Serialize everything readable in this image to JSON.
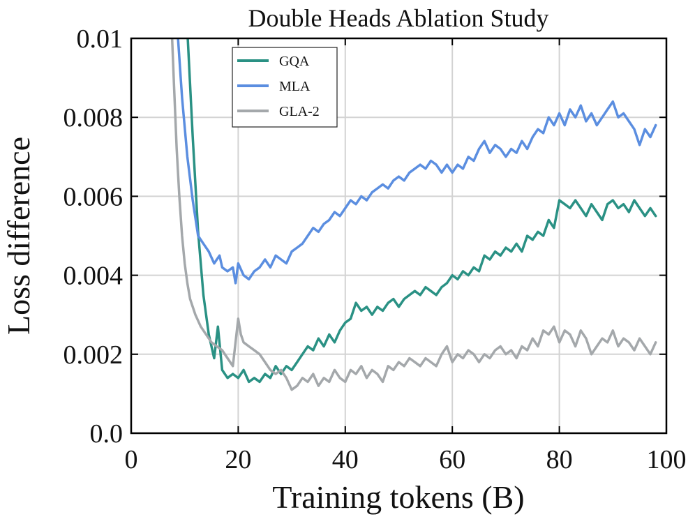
{
  "chart_data": {
    "type": "line",
    "title": "Double Heads Ablation Study",
    "xlabel": "Training tokens (B)",
    "ylabel": "Loss difference",
    "xlim": [
      0,
      100
    ],
    "ylim": [
      0,
      0.01
    ],
    "xticks": [
      0,
      20,
      40,
      60,
      80,
      100
    ],
    "xtick_labels": [
      "0",
      "20",
      "40",
      "60",
      "80",
      "100"
    ],
    "yticks": [
      0,
      0.002,
      0.004,
      0.006,
      0.008,
      0.01
    ],
    "ytick_labels": [
      "0.0",
      "0.002",
      "0.004",
      "0.006",
      "0.008",
      "0.01"
    ],
    "grid": true,
    "legend_position": "top-left",
    "series": [
      {
        "name": "GQA",
        "color": "#2a9184",
        "x": [
          10.5,
          11.5,
          12.5,
          13.5,
          14.5,
          15.5,
          16.2,
          17,
          18,
          19,
          20,
          21,
          22,
          23,
          24,
          25,
          26,
          27,
          28,
          29,
          30,
          31,
          32,
          33,
          34,
          35,
          36,
          37,
          38,
          39,
          40,
          41,
          42,
          43,
          44,
          45,
          46,
          47,
          48,
          49,
          50,
          51,
          52,
          53,
          54,
          55,
          56,
          57,
          58,
          59,
          60,
          61,
          62,
          63,
          64,
          65,
          66,
          67,
          68,
          69,
          70,
          71,
          72,
          73,
          74,
          75,
          76,
          77,
          78,
          79,
          80,
          81,
          82,
          83,
          84,
          85,
          86,
          87,
          88,
          89,
          90,
          91,
          92,
          93,
          94,
          95,
          96,
          97,
          98
        ],
        "y": [
          0.0102,
          0.0075,
          0.0051,
          0.0035,
          0.0025,
          0.0019,
          0.0027,
          0.0016,
          0.0014,
          0.0015,
          0.0014,
          0.0016,
          0.0013,
          0.0014,
          0.0013,
          0.0015,
          0.0014,
          0.0017,
          0.0015,
          0.0017,
          0.0016,
          0.0018,
          0.002,
          0.0022,
          0.0021,
          0.0024,
          0.0022,
          0.0025,
          0.0023,
          0.0026,
          0.0028,
          0.0029,
          0.0033,
          0.0031,
          0.0032,
          0.003,
          0.0032,
          0.0031,
          0.0033,
          0.0034,
          0.0032,
          0.0034,
          0.0035,
          0.0036,
          0.0035,
          0.0037,
          0.0036,
          0.0035,
          0.0037,
          0.0038,
          0.004,
          0.0039,
          0.0041,
          0.004,
          0.0042,
          0.0041,
          0.0045,
          0.0044,
          0.0046,
          0.0045,
          0.0047,
          0.0046,
          0.0048,
          0.0046,
          0.005,
          0.0049,
          0.0051,
          0.005,
          0.0054,
          0.0052,
          0.0059,
          0.0058,
          0.0057,
          0.0059,
          0.0057,
          0.0055,
          0.0058,
          0.0056,
          0.0054,
          0.0058,
          0.0059,
          0.0057,
          0.0058,
          0.0056,
          0.0059,
          0.0057,
          0.0055,
          0.0057,
          0.0055
        ]
      },
      {
        "name": "MLA",
        "color": "#5b8ee0",
        "x": [
          8.5,
          9.5,
          10.5,
          11.5,
          12.5,
          13.5,
          14.5,
          15.5,
          16.5,
          17,
          18,
          19,
          19.5,
          20,
          21,
          22,
          23,
          24,
          25,
          26,
          27,
          28,
          29,
          30,
          31,
          32,
          33,
          34,
          35,
          36,
          37,
          38,
          39,
          40,
          41,
          42,
          43,
          44,
          45,
          46,
          47,
          48,
          49,
          50,
          51,
          52,
          53,
          54,
          55,
          56,
          57,
          58,
          59,
          60,
          61,
          62,
          63,
          64,
          65,
          66,
          67,
          68,
          69,
          70,
          71,
          72,
          73,
          74,
          75,
          76,
          77,
          78,
          79,
          80,
          81,
          82,
          83,
          84,
          85,
          86,
          87,
          88,
          89,
          90,
          91,
          92,
          93,
          94,
          95,
          96,
          97,
          98
        ],
        "y": [
          0.0105,
          0.0085,
          0.007,
          0.0059,
          0.005,
          0.0048,
          0.0046,
          0.0043,
          0.0045,
          0.0042,
          0.0041,
          0.0042,
          0.0038,
          0.0043,
          0.004,
          0.0039,
          0.0041,
          0.0042,
          0.0044,
          0.0042,
          0.0045,
          0.0044,
          0.0043,
          0.0046,
          0.0047,
          0.0048,
          0.005,
          0.0052,
          0.0051,
          0.0053,
          0.0054,
          0.0056,
          0.0055,
          0.0057,
          0.0059,
          0.0058,
          0.006,
          0.0059,
          0.0061,
          0.0062,
          0.0063,
          0.0062,
          0.0064,
          0.0065,
          0.0064,
          0.0066,
          0.0067,
          0.0068,
          0.0067,
          0.0069,
          0.0068,
          0.0066,
          0.0068,
          0.0066,
          0.0068,
          0.0067,
          0.007,
          0.0069,
          0.0072,
          0.0074,
          0.0071,
          0.0073,
          0.0072,
          0.007,
          0.0072,
          0.0071,
          0.0074,
          0.0072,
          0.0075,
          0.0077,
          0.0076,
          0.008,
          0.0078,
          0.0081,
          0.0078,
          0.0082,
          0.008,
          0.0083,
          0.0079,
          0.0081,
          0.0078,
          0.008,
          0.0082,
          0.0084,
          0.008,
          0.0081,
          0.0079,
          0.0077,
          0.0073,
          0.0077,
          0.0075,
          0.0078
        ]
      },
      {
        "name": "GLA-2",
        "color": "#a4a8ab",
        "x": [
          7.5,
          8,
          8.5,
          9,
          9.5,
          10,
          10.5,
          11,
          12,
          13,
          14,
          15,
          16,
          17,
          18,
          19,
          20,
          20.5,
          21,
          22,
          23,
          24,
          25,
          26,
          27,
          28,
          29,
          30,
          31,
          32,
          33,
          34,
          35,
          36,
          37,
          38,
          39,
          40,
          41,
          42,
          43,
          44,
          45,
          46,
          47,
          48,
          49,
          50,
          51,
          52,
          53,
          54,
          55,
          56,
          57,
          58,
          59,
          60,
          61,
          62,
          63,
          64,
          65,
          66,
          67,
          68,
          69,
          70,
          71,
          72,
          73,
          74,
          75,
          76,
          77,
          78,
          79,
          80,
          81,
          82,
          83,
          84,
          85,
          86,
          87,
          88,
          89,
          90,
          91,
          92,
          93,
          94,
          95,
          96,
          97,
          98
        ],
        "y": [
          0.0105,
          0.0088,
          0.0072,
          0.006,
          0.005,
          0.0043,
          0.0038,
          0.0034,
          0.003,
          0.0027,
          0.0025,
          0.0023,
          0.0022,
          0.0021,
          0.0019,
          0.0017,
          0.0029,
          0.0025,
          0.0023,
          0.0022,
          0.0021,
          0.002,
          0.0018,
          0.0016,
          0.0015,
          0.0016,
          0.0014,
          0.0011,
          0.0012,
          0.0014,
          0.0013,
          0.0015,
          0.0012,
          0.0014,
          0.0013,
          0.0016,
          0.0014,
          0.0013,
          0.0016,
          0.0015,
          0.0017,
          0.0014,
          0.0016,
          0.0015,
          0.0013,
          0.0017,
          0.0016,
          0.0018,
          0.0017,
          0.0019,
          0.0018,
          0.0017,
          0.0019,
          0.0018,
          0.0017,
          0.002,
          0.0022,
          0.0018,
          0.002,
          0.0019,
          0.0021,
          0.002,
          0.0018,
          0.002,
          0.0019,
          0.0021,
          0.0022,
          0.002,
          0.0021,
          0.0019,
          0.0022,
          0.0021,
          0.0024,
          0.0022,
          0.0026,
          0.0025,
          0.0027,
          0.0023,
          0.0026,
          0.0025,
          0.0022,
          0.0026,
          0.0024,
          0.002,
          0.0022,
          0.0024,
          0.0023,
          0.0026,
          0.0022,
          0.0024,
          0.0023,
          0.0021,
          0.0024,
          0.0022,
          0.002,
          0.0023
        ]
      }
    ]
  }
}
